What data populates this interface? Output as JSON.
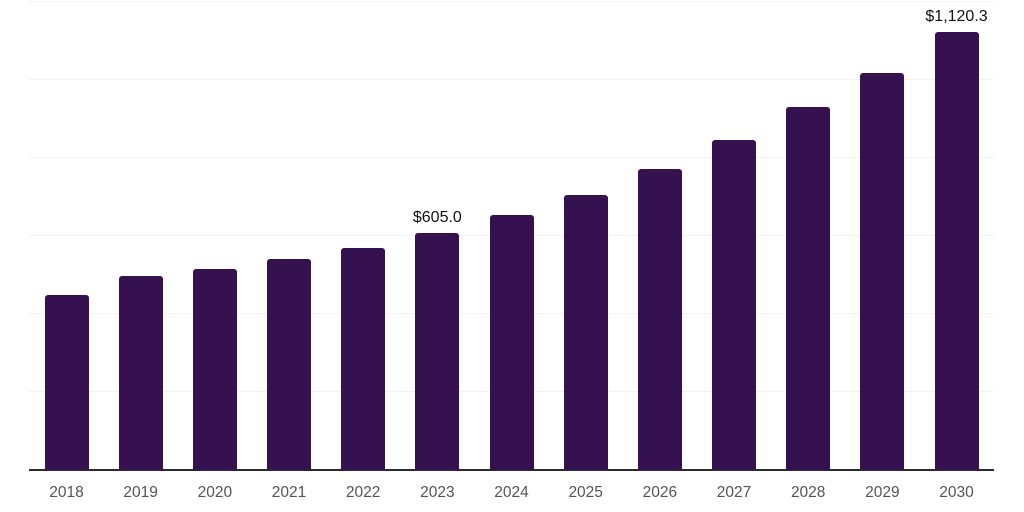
{
  "chart_data": {
    "type": "bar",
    "title": "",
    "xlabel": "",
    "ylabel": "",
    "categories": [
      "2018",
      "2019",
      "2020",
      "2021",
      "2022",
      "2023",
      "2024",
      "2025",
      "2026",
      "2027",
      "2028",
      "2029",
      "2030"
    ],
    "values": [
      445,
      496,
      513,
      538,
      566,
      605.0,
      651,
      703,
      769,
      844,
      927,
      1016,
      1120.3
    ],
    "data_labels": [
      "",
      "",
      "",
      "",
      "",
      "$605.0",
      "",
      "",
      "",
      "",
      "",
      "",
      "$1,120.3"
    ],
    "ylim": [
      0,
      1200
    ],
    "gridline_values": [
      200,
      400,
      600,
      800,
      1000,
      1200
    ],
    "grid": true,
    "legend": false,
    "colors": {
      "bar": "#361150",
      "gridline": "#f2f2f2",
      "axis_line": "#2b2b2b",
      "x_tick_label": "#545454",
      "data_label": "#111111",
      "background": "#ffffff"
    }
  }
}
